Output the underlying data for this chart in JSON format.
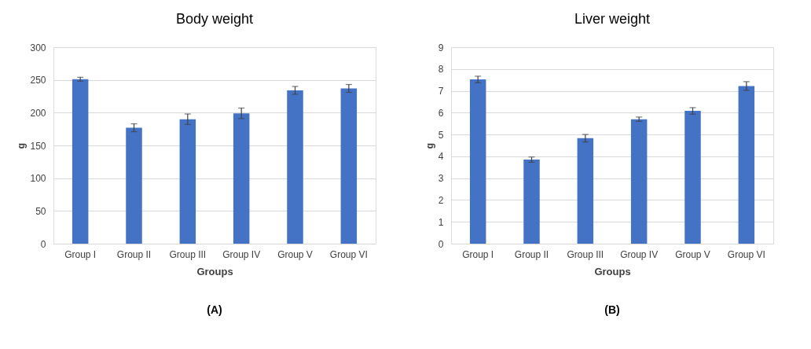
{
  "chart_data": [
    {
      "type": "bar",
      "title": "Body weight",
      "xlabel": "Groups",
      "ylabel": "g",
      "categories": [
        "Group I",
        "Group II",
        "Group III",
        "Group IV",
        "Group V",
        "Group VI"
      ],
      "values": [
        251,
        177,
        190,
        199,
        234,
        237
      ],
      "errors": [
        3,
        6,
        8,
        8,
        6,
        6
      ],
      "color": "#4472c4",
      "ylim": [
        0,
        300
      ],
      "yticks": [
        0,
        50,
        100,
        150,
        200,
        250,
        300
      ],
      "grid": "y",
      "annotations": [
        "(A)"
      ]
    },
    {
      "type": "bar",
      "title": "Liver weight",
      "xlabel": "Groups",
      "ylabel": "g",
      "categories": [
        "Group I",
        "Group II",
        "Group III",
        "Group IV",
        "Group V",
        "Group VI"
      ],
      "values": [
        7.52,
        3.85,
        4.83,
        5.7,
        6.08,
        7.22
      ],
      "errors": [
        0.15,
        0.12,
        0.17,
        0.1,
        0.15,
        0.2
      ],
      "color": "#4472c4",
      "ylim": [
        0,
        9
      ],
      "yticks": [
        0,
        1,
        2,
        3,
        4,
        5,
        6,
        7,
        8,
        9
      ],
      "grid": "y",
      "annotations": [
        "(B)"
      ]
    }
  ]
}
